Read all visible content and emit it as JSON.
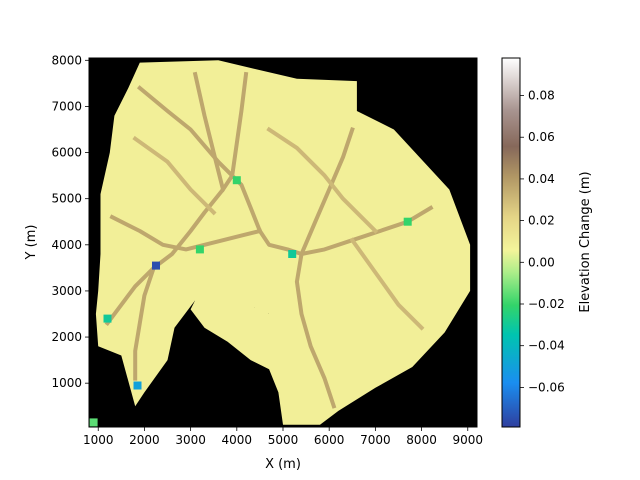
{
  "chart_data": {
    "type": "heatmap",
    "title": "",
    "xlabel": "X (m)",
    "ylabel": "Y (m)",
    "xlim": [
      800,
      9200
    ],
    "ylim": [
      50,
      8050
    ],
    "x_ticks": [
      1000,
      2000,
      3000,
      4000,
      5000,
      6000,
      7000,
      8000,
      9000
    ],
    "y_ticks": [
      1000,
      2000,
      3000,
      4000,
      5000,
      6000,
      7000,
      8000
    ],
    "background_value": "no data (black)",
    "colormap": "terrain",
    "colorbar": {
      "label": "Elevation Change (m)",
      "vmin": -0.079,
      "vmax": 0.098,
      "ticks": [
        -0.06,
        -0.04,
        -0.02,
        0.0,
        0.02,
        0.04,
        0.06,
        0.08
      ],
      "tick_labels": [
        "−0.06",
        "−0.04",
        "−0.02",
        "0.00",
        "0.02",
        "0.04",
        "0.06",
        "0.08"
      ]
    },
    "domain_outline": [
      [
        1900,
        7950
      ],
      [
        3600,
        8000
      ],
      [
        5300,
        7600
      ],
      [
        6600,
        7550
      ],
      [
        6600,
        6900
      ],
      [
        7400,
        6500
      ],
      [
        8600,
        5200
      ],
      [
        9050,
        4000
      ],
      [
        9050,
        3000
      ],
      [
        8500,
        2100
      ],
      [
        7800,
        1350
      ],
      [
        7000,
        900
      ],
      [
        6200,
        400
      ],
      [
        5800,
        100
      ],
      [
        5000,
        100
      ],
      [
        4900,
        800
      ],
      [
        4700,
        1300
      ],
      [
        4300,
        1500
      ],
      [
        4300,
        2200
      ],
      [
        4700,
        2500
      ],
      [
        4000,
        2800
      ],
      [
        3100,
        2800
      ],
      [
        2650,
        2200
      ],
      [
        2500,
        1500
      ],
      [
        2000,
        800
      ],
      [
        1800,
        500
      ],
      [
        1500,
        1600
      ],
      [
        1000,
        1800
      ],
      [
        950,
        2500
      ],
      [
        1000,
        3000
      ],
      [
        1050,
        3800
      ],
      [
        1050,
        5100
      ],
      [
        1250,
        6000
      ],
      [
        1350,
        6800
      ],
      [
        1650,
        7400
      ]
    ],
    "gap_outline": [
      [
        4700,
        2500
      ],
      [
        4300,
        2200
      ],
      [
        4300,
        1500
      ],
      [
        3800,
        1900
      ],
      [
        3300,
        2200
      ],
      [
        3000,
        2600
      ],
      [
        3100,
        2800
      ],
      [
        4000,
        2800
      ]
    ],
    "channels": [
      {
        "value": 0.035,
        "points": [
          [
            1900,
            7400
          ],
          [
            2500,
            6900
          ],
          [
            3000,
            6500
          ],
          [
            3600,
            5800
          ],
          [
            4100,
            5300
          ],
          [
            4300,
            4800
          ],
          [
            4500,
            4300
          ],
          [
            4700,
            4000
          ],
          [
            5100,
            3900
          ],
          [
            5400,
            3800
          ]
        ]
      },
      {
        "value": 0.035,
        "points": [
          [
            3100,
            7700
          ],
          [
            3300,
            6800
          ],
          [
            3500,
            6000
          ],
          [
            3700,
            5200
          ],
          [
            3300,
            4700
          ],
          [
            3000,
            4300
          ],
          [
            2600,
            3800
          ],
          [
            2200,
            3500
          ],
          [
            1800,
            3100
          ],
          [
            1500,
            2700
          ],
          [
            1200,
            2300
          ]
        ]
      },
      {
        "value": 0.035,
        "points": [
          [
            4200,
            7700
          ],
          [
            4100,
            6900
          ],
          [
            4000,
            6200
          ],
          [
            3900,
            5500
          ],
          [
            3700,
            5200
          ]
        ]
      },
      {
        "value": 0.035,
        "points": [
          [
            1300,
            4600
          ],
          [
            1900,
            4300
          ],
          [
            2400,
            4000
          ],
          [
            2900,
            3900
          ],
          [
            3300,
            4000
          ],
          [
            3700,
            4100
          ],
          [
            4100,
            4200
          ],
          [
            4500,
            4300
          ]
        ]
      },
      {
        "value": 0.035,
        "points": [
          [
            5400,
            3800
          ],
          [
            5900,
            3900
          ],
          [
            6500,
            4100
          ],
          [
            7100,
            4300
          ],
          [
            7700,
            4500
          ],
          [
            8200,
            4800
          ]
        ]
      },
      {
        "value": 0.035,
        "points": [
          [
            5400,
            3800
          ],
          [
            5300,
            3200
          ],
          [
            5400,
            2500
          ],
          [
            5600,
            1800
          ],
          [
            5900,
            1100
          ],
          [
            6100,
            500
          ]
        ]
      },
      {
        "value": 0.035,
        "points": [
          [
            5400,
            3800
          ],
          [
            5700,
            4500
          ],
          [
            6000,
            5200
          ],
          [
            6300,
            5900
          ],
          [
            6500,
            6500
          ]
        ]
      },
      {
        "value": 0.035,
        "points": [
          [
            2200,
            3500
          ],
          [
            2000,
            2900
          ],
          [
            1900,
            2300
          ],
          [
            1800,
            1700
          ],
          [
            1800,
            1100
          ]
        ]
      },
      {
        "value": 0.03,
        "points": [
          [
            6500,
            4100
          ],
          [
            7000,
            3400
          ],
          [
            7500,
            2700
          ],
          [
            8000,
            2200
          ]
        ]
      },
      {
        "value": 0.03,
        "points": [
          [
            4700,
            6500
          ],
          [
            5300,
            6100
          ],
          [
            5900,
            5500
          ],
          [
            6300,
            5000
          ],
          [
            7000,
            4300
          ]
        ]
      },
      {
        "value": 0.03,
        "points": [
          [
            1800,
            6300
          ],
          [
            2500,
            5800
          ],
          [
            3000,
            5200
          ],
          [
            3500,
            4700
          ]
        ]
      }
    ],
    "hotspots": [
      {
        "x": 2250,
        "y": 3550,
        "value": -0.075
      },
      {
        "x": 1850,
        "y": 950,
        "value": -0.05
      },
      {
        "x": 5200,
        "y": 3800,
        "value": -0.03
      },
      {
        "x": 3200,
        "y": 3900,
        "value": -0.02
      },
      {
        "x": 4000,
        "y": 5400,
        "value": -0.02
      },
      {
        "x": 7700,
        "y": 4500,
        "value": -0.02
      },
      {
        "x": 1200,
        "y": 2400,
        "value": -0.03
      },
      {
        "x": 900,
        "y": 150,
        "value": -0.015
      }
    ]
  }
}
